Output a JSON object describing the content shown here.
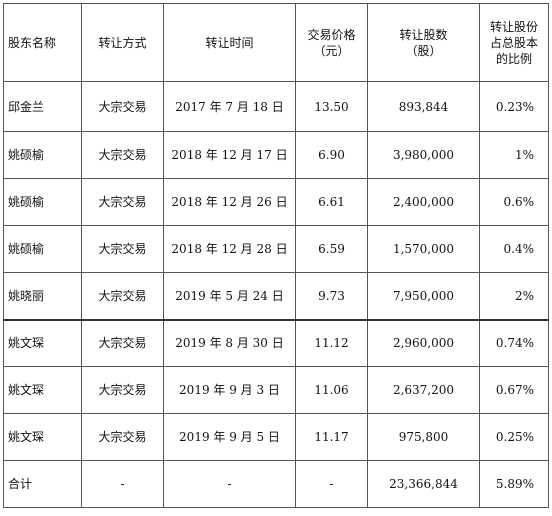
{
  "headers": {
    "name": "股东名称",
    "method": "转让方式",
    "time": "转让时间",
    "price_line1": "交易价格",
    "price_line2": "（元）",
    "shares_line1": "转让股数",
    "shares_line2": "（股）",
    "ratio_line1": "转让股份",
    "ratio_line2": "占总股本",
    "ratio_line3": "的比例"
  },
  "rows": [
    {
      "name": "邱金兰",
      "method": "大宗交易",
      "time": "2017 年 7 月 18 日",
      "price": "13.50",
      "shares": "893,844",
      "ratio": "0.23%"
    },
    {
      "name": "姚硕榆",
      "method": "大宗交易",
      "time": "2018 年 12 月 17 日",
      "price": "6.90",
      "shares": "3,980,000",
      "ratio": "1%"
    },
    {
      "name": "姚硕榆",
      "method": "大宗交易",
      "time": "2018 年 12 月 26 日",
      "price": "6.61",
      "shares": "2,400,000",
      "ratio": "0.6%"
    },
    {
      "name": "姚硕榆",
      "method": "大宗交易",
      "time": "2018 年 12 月 28 日",
      "price": "6.59",
      "shares": "1,570,000",
      "ratio": "0.4%"
    },
    {
      "name": "姚晓丽",
      "method": "大宗交易",
      "time": "2019 年 5 月 24 日",
      "price": "9.73",
      "shares": "7,950,000",
      "ratio": "2%"
    },
    {
      "name": "姚文琛",
      "method": "大宗交易",
      "time": "2019 年 8 月 30 日",
      "price": "11.12",
      "shares": "2,960,000",
      "ratio": "0.74%"
    },
    {
      "name": "姚文琛",
      "method": "大宗交易",
      "time": "2019 年 9 月 3 日",
      "price": "11.06",
      "shares": "2,637,200",
      "ratio": "0.67%"
    },
    {
      "name": "姚文琛",
      "method": "大宗交易",
      "time": "2019 年 9 月 5 日",
      "price": "11.17",
      "shares": "975,800",
      "ratio": "0.25%"
    }
  ],
  "total": {
    "name": "合计",
    "method": "-",
    "time": "-",
    "price": "-",
    "shares": "23,366,844",
    "ratio": "5.89%"
  }
}
